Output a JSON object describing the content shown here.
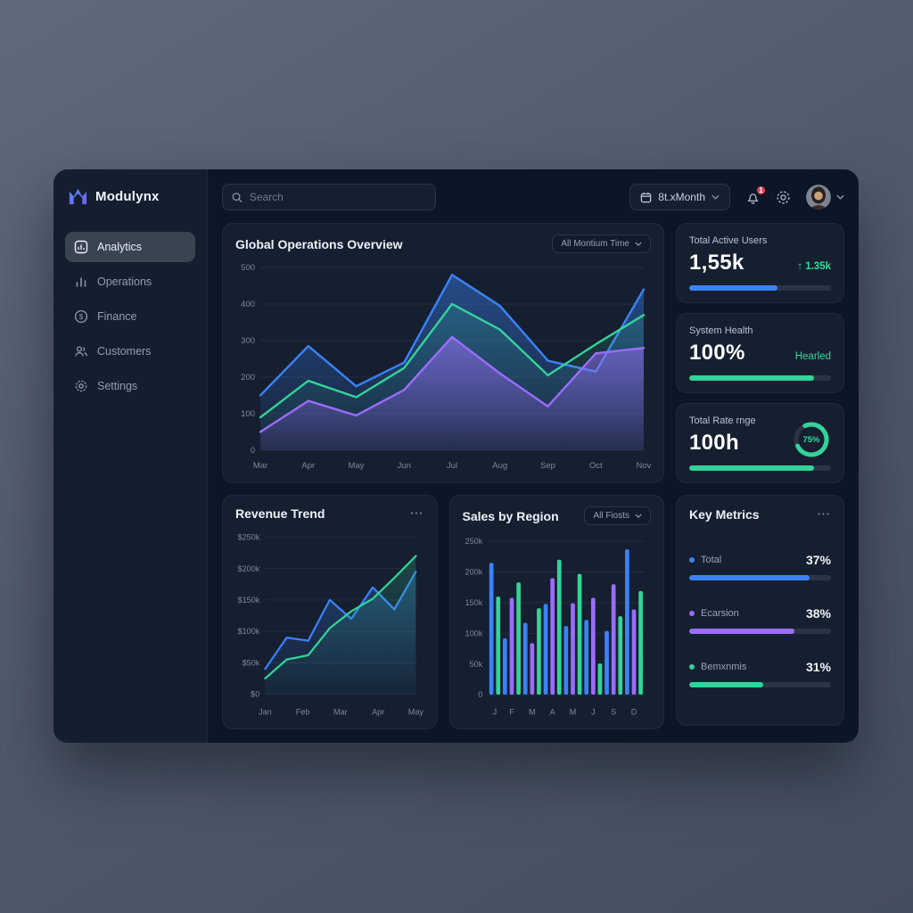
{
  "colors": {
    "blue": "#3b82f6",
    "green": "#34d399",
    "purple": "#9b6cfb",
    "red": "#e8445a"
  },
  "brand": {
    "name": "Modulynx"
  },
  "sidebar": {
    "items": [
      {
        "label": "Analytics",
        "active": true
      },
      {
        "label": "Operations",
        "active": false
      },
      {
        "label": "Finance",
        "active": false
      },
      {
        "label": "Customers",
        "active": false
      },
      {
        "label": "Settings",
        "active": false
      }
    ]
  },
  "topbar": {
    "search_placeholder": "Search",
    "period_label": "8t.xMonth",
    "notification_badge": "1"
  },
  "overview_chart": {
    "title": "Global Operations Overview",
    "filter_label": "All Montium Time",
    "chart_data": {
      "type": "line",
      "x_labels": [
        "Mar",
        "Apr",
        "May",
        "Jun",
        "Jul",
        "Aug",
        "Sep",
        "Oct",
        "Nov"
      ],
      "yticks_labels": [
        "500",
        "400",
        "300",
        "200",
        "100",
        "0"
      ],
      "ylim": [
        0,
        500
      ],
      "grid": true,
      "series": [
        {
          "name": "blue-series",
          "color": "#3b82f6",
          "values": [
            150,
            285,
            175,
            240,
            480,
            395,
            245,
            215,
            440
          ]
        },
        {
          "name": "green-series",
          "color": "#34d399",
          "values": [
            90,
            190,
            145,
            225,
            400,
            330,
            205,
            290,
            370
          ]
        },
        {
          "name": "purple-series",
          "color": "#9b6cfb",
          "values": [
            50,
            135,
            95,
            165,
            310,
            210,
            120,
            265,
            280
          ]
        }
      ]
    }
  },
  "stat_cards": [
    {
      "title": "Total Active Users",
      "value": "1,55k",
      "delta": "↑ 1.35k",
      "bar_color": "#3b82f6",
      "bar_pct": 62
    },
    {
      "title": "System Health",
      "value": "100%",
      "status": "Hearled",
      "bar_color": "#34d399",
      "bar_pct": 88
    },
    {
      "title": "Total Rate rnge",
      "value": "100h",
      "donut_pct": 75,
      "donut_label": "75%",
      "bar_color": "#34d399",
      "bar_pct": 88
    }
  ],
  "revenue_trend": {
    "title": "Revenue Trend",
    "menu": "⋯",
    "chart_data": {
      "type": "line",
      "x_labels": [
        "Jan",
        "Feb",
        "Mar",
        "Apr",
        "May"
      ],
      "yticks_labels": [
        "$250k",
        "$200k",
        "$150k",
        "$100k",
        "$50k",
        "$0"
      ],
      "ylim": [
        0,
        250
      ],
      "grid": true,
      "series": [
        {
          "name": "blue-series",
          "color": "#3b82f6",
          "values": [
            40,
            90,
            85,
            150,
            120,
            170,
            135,
            195
          ]
        },
        {
          "name": "green-series",
          "color": "#34d399",
          "values": [
            25,
            55,
            62,
            105,
            132,
            152,
            185,
            220
          ]
        }
      ]
    }
  },
  "sales_by_region": {
    "title": "Sales by Region",
    "filter_label": "All Fiosts",
    "chart_data": {
      "type": "bar",
      "x_labels": [
        "J",
        "F",
        "M",
        "A",
        "M",
        "J",
        "S",
        "D"
      ],
      "yticks_labels": [
        "250k",
        "200k",
        "150k",
        "100k",
        "50k",
        "0"
      ],
      "ylim": [
        0,
        250
      ],
      "bars": [
        {
          "color": "blue",
          "value": 215
        },
        {
          "color": "green",
          "value": 160
        },
        {
          "color": "blue",
          "value": 92
        },
        {
          "color": "purple",
          "value": 158
        },
        {
          "color": "green",
          "value": 183
        },
        {
          "color": "blue",
          "value": 117
        },
        {
          "color": "purple",
          "value": 84
        },
        {
          "color": "green",
          "value": 141
        },
        {
          "color": "blue",
          "value": 148
        },
        {
          "color": "purple",
          "value": 190
        },
        {
          "color": "green",
          "value": 220
        },
        {
          "color": "blue",
          "value": 112
        },
        {
          "color": "purple",
          "value": 149
        },
        {
          "color": "green",
          "value": 197
        },
        {
          "color": "blue",
          "value": 122
        },
        {
          "color": "purple",
          "value": 158
        },
        {
          "color": "green",
          "value": 51
        },
        {
          "color": "blue",
          "value": 104
        },
        {
          "color": "purple",
          "value": 180
        },
        {
          "color": "green",
          "value": 128
        },
        {
          "color": "blue",
          "value": 237
        },
        {
          "color": "purple",
          "value": 139
        },
        {
          "color": "green",
          "value": 169
        }
      ]
    }
  },
  "key_metrics": {
    "title": "Key Metrics",
    "menu": "⋯",
    "rows": [
      {
        "label": "Total",
        "pct": "37%",
        "color": "#3b82f6",
        "fill": 85
      },
      {
        "label": "Ecarsion",
        "pct": "38%",
        "color": "#9b6cfb",
        "fill": 74
      },
      {
        "label": "Bemxnmis",
        "pct": "31%",
        "color": "#34d399",
        "fill": 52
      }
    ]
  }
}
